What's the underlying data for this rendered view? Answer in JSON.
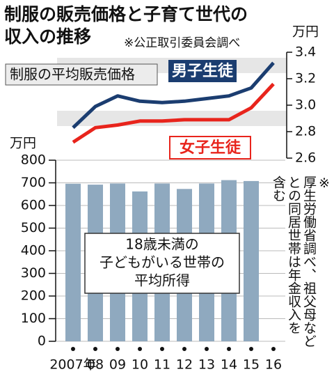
{
  "chart_data": [
    {
      "type": "line",
      "title": [
        "制服の販売価格と子育て世代の",
        "収入の推移"
      ],
      "note": "※公正取引委員会調べ",
      "label": "制服の平均販売価格",
      "y_unit": "万円",
      "series": [
        {
          "name": "男子生徒",
          "color": "#1b3d70",
          "values": [
            2.83,
            2.99,
            3.07,
            3.03,
            3.02,
            3.03,
            3.05,
            3.07,
            3.13,
            3.32
          ]
        },
        {
          "name": "女子生徒",
          "color": "#e8241c",
          "values": [
            2.72,
            2.83,
            2.85,
            2.88,
            2.88,
            2.89,
            2.89,
            2.89,
            2.98,
            3.16
          ]
        }
      ],
      "ylim": [
        2.6,
        3.4
      ],
      "yticks": [
        {
          "value": 2.6,
          "label": "2.6"
        },
        {
          "value": 2.8,
          "label": "2.8"
        },
        {
          "value": 3.0,
          "label": "3.0"
        },
        {
          "value": 3.2,
          "label": "3.2"
        },
        {
          "value": 3.4,
          "label": "3.4"
        }
      ]
    },
    {
      "type": "bar",
      "y_unit": "万円",
      "label": [
        "18歳未満の",
        "子どもがいる世帯の",
        "平均所得"
      ],
      "note": [
        "※",
        "厚生労働省調べ、祖父母など",
        "との同居世帯は年金収入を",
        "含む"
      ],
      "categories": [
        "2007年",
        "08",
        "09",
        "10",
        "11",
        "12",
        "13",
        "14",
        "15",
        "16"
      ],
      "values": [
        696,
        692,
        697,
        662,
        697,
        673,
        697,
        712,
        708,
        null
      ],
      "color": "#8fa9bf",
      "ylim": [
        0,
        800
      ],
      "yticks": [
        0,
        100,
        200,
        300,
        400,
        500,
        600,
        700,
        800
      ],
      "grid": true
    }
  ]
}
